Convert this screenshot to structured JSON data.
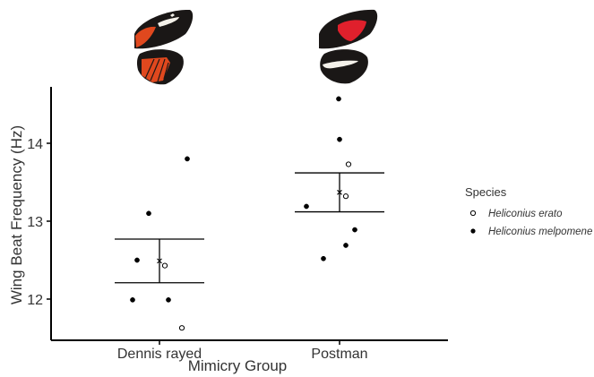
{
  "chart_data": {
    "type": "scatter",
    "xlabel": "Mimicry Group",
    "ylabel": "Wing Beat Frequency (Hz)",
    "categories": [
      "Dennis rayed",
      "Postman"
    ],
    "ylim": [
      11.6,
      14.7
    ],
    "yticks": [
      12,
      13,
      14
    ],
    "grid": false,
    "legend": {
      "title": "Species",
      "position": "right",
      "entries": [
        {
          "label": "Heliconius erato",
          "marker": "open-circle"
        },
        {
          "label": "Heliconius melpomene",
          "marker": "filled-circle"
        }
      ]
    },
    "series": [
      {
        "name": "Heliconius erato",
        "marker": "open-circle",
        "points": [
          {
            "category": "Dennis rayed",
            "y": 12.43
          },
          {
            "category": "Dennis rayed",
            "y": 11.63
          },
          {
            "category": "Postman",
            "y": 13.73
          },
          {
            "category": "Postman",
            "y": 13.32
          }
        ]
      },
      {
        "name": "Heliconius melpomene",
        "marker": "filled-circle",
        "points": [
          {
            "category": "Dennis rayed",
            "y": 13.8
          },
          {
            "category": "Dennis rayed",
            "y": 13.1
          },
          {
            "category": "Dennis rayed",
            "y": 12.5
          },
          {
            "category": "Dennis rayed",
            "y": 11.99
          },
          {
            "category": "Dennis rayed",
            "y": 11.99
          },
          {
            "category": "Postman",
            "y": 14.57
          },
          {
            "category": "Postman",
            "y": 14.05
          },
          {
            "category": "Postman",
            "y": 13.19
          },
          {
            "category": "Postman",
            "y": 12.89
          },
          {
            "category": "Postman",
            "y": 12.69
          },
          {
            "category": "Postman",
            "y": 12.52
          }
        ]
      }
    ],
    "summary": [
      {
        "category": "Dennis rayed",
        "mean": 12.49,
        "lower": 12.21,
        "upper": 12.77
      },
      {
        "category": "Postman",
        "mean": 13.37,
        "lower": 13.12,
        "upper": 13.62
      }
    ],
    "colors": {
      "axis": "#000000",
      "text": "#333333",
      "points": "#000000",
      "wing_black": "#1a1716",
      "wing_orange": "#e0481e",
      "wing_red": "#e0202c",
      "wing_white": "#f4f1ea"
    },
    "images": [
      {
        "category": "Dennis rayed",
        "icon": "butterfly-wing-dennis-rayed"
      },
      {
        "category": "Postman",
        "icon": "butterfly-wing-postman"
      }
    ]
  }
}
